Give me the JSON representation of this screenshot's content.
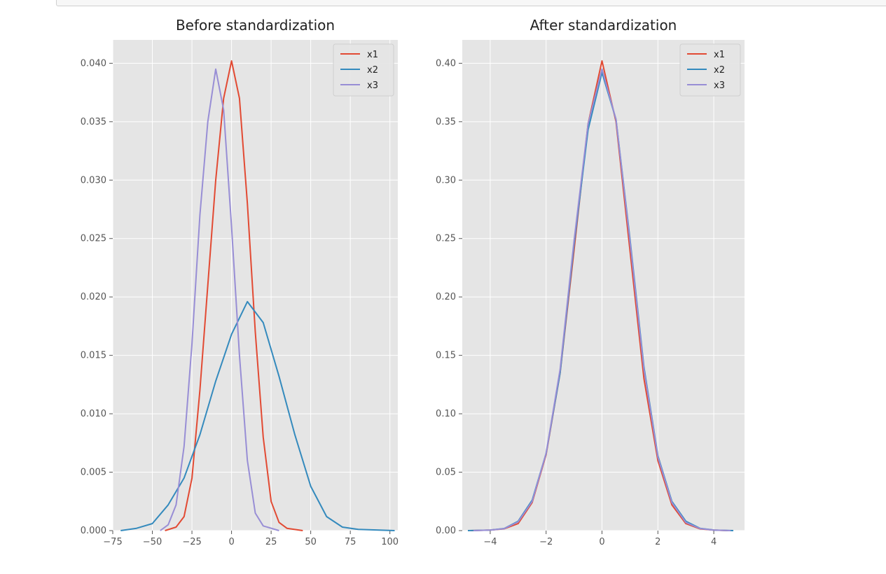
{
  "colors": {
    "x1": "#E24A33",
    "x2": "#348ABD",
    "x3": "#988ED5",
    "panel_bg": "#E5E5E5",
    "grid": "#FFFFFF"
  },
  "chart_data": [
    {
      "type": "line",
      "title": "Before standardization",
      "xlabel": "",
      "ylabel": "",
      "xlim": [
        -75,
        105
      ],
      "ylim": [
        0,
        0.042
      ],
      "grid": true,
      "legend_position": "top-right",
      "x_ticks": [
        -75,
        -50,
        -25,
        0,
        25,
        50,
        75,
        100
      ],
      "x_tick_labels": [
        "−75",
        "−50",
        "−25",
        "0",
        "25",
        "50",
        "75",
        "100"
      ],
      "y_ticks": [
        0,
        0.005,
        0.01,
        0.015,
        0.02,
        0.025,
        0.03,
        0.035,
        0.04
      ],
      "y_tick_labels": [
        "0.000",
        "0.005",
        "0.010",
        "0.015",
        "0.020",
        "0.025",
        "0.030",
        "0.035",
        "0.040"
      ],
      "series": [
        {
          "name": "x1",
          "color": "#E24A33",
          "points": [
            [
              -42,
              0
            ],
            [
              -35,
              0.0003
            ],
            [
              -30,
              0.0012
            ],
            [
              -25,
              0.0045
            ],
            [
              -20,
              0.012
            ],
            [
              -15,
              0.021
            ],
            [
              -10,
              0.03
            ],
            [
              -5,
              0.037
            ],
            [
              0,
              0.0402
            ],
            [
              5,
              0.037
            ],
            [
              10,
              0.028
            ],
            [
              15,
              0.017
            ],
            [
              20,
              0.008
            ],
            [
              25,
              0.0025
            ],
            [
              30,
              0.0007
            ],
            [
              35,
              0.0002
            ],
            [
              45,
              0
            ]
          ]
        },
        {
          "name": "x2",
          "color": "#348ABD",
          "points": [
            [
              -70,
              0
            ],
            [
              -60,
              0.0002
            ],
            [
              -50,
              0.0006
            ],
            [
              -40,
              0.0022
            ],
            [
              -30,
              0.0045
            ],
            [
              -20,
              0.0082
            ],
            [
              -10,
              0.0128
            ],
            [
              0,
              0.0168
            ],
            [
              10,
              0.0196
            ],
            [
              20,
              0.0178
            ],
            [
              30,
              0.0132
            ],
            [
              40,
              0.0082
            ],
            [
              50,
              0.0038
            ],
            [
              60,
              0.0012
            ],
            [
              70,
              0.0003
            ],
            [
              80,
              0.0001
            ],
            [
              103,
              0
            ]
          ]
        },
        {
          "name": "x3",
          "color": "#988ED5",
          "points": [
            [
              -45,
              0
            ],
            [
              -40,
              0.0005
            ],
            [
              -35,
              0.0022
            ],
            [
              -30,
              0.0072
            ],
            [
              -25,
              0.016
            ],
            [
              -20,
              0.027
            ],
            [
              -15,
              0.035
            ],
            [
              -10,
              0.0395
            ],
            [
              -5,
              0.036
            ],
            [
              0,
              0.026
            ],
            [
              5,
              0.015
            ],
            [
              10,
              0.006
            ],
            [
              15,
              0.0015
            ],
            [
              20,
              0.0004
            ],
            [
              30,
              0
            ]
          ]
        }
      ]
    },
    {
      "type": "line",
      "title": "After standardization",
      "xlabel": "",
      "ylabel": "",
      "xlim": [
        -5,
        5.1
      ],
      "ylim": [
        0,
        0.42
      ],
      "grid": true,
      "legend_position": "top-right",
      "x_ticks": [
        -4,
        -2,
        0,
        2,
        4
      ],
      "x_tick_labels": [
        "−4",
        "−2",
        "0",
        "2",
        "4"
      ],
      "y_ticks": [
        0,
        0.05,
        0.1,
        0.15,
        0.2,
        0.25,
        0.3,
        0.35,
        0.4
      ],
      "y_tick_labels": [
        "0.00",
        "0.05",
        "0.10",
        "0.15",
        "0.20",
        "0.25",
        "0.30",
        "0.35",
        "0.40"
      ],
      "series": [
        {
          "name": "x1",
          "color": "#E24A33",
          "points": [
            [
              -4.7,
              0
            ],
            [
              -4,
              0.0004
            ],
            [
              -3.5,
              0.0015
            ],
            [
              -3,
              0.006
            ],
            [
              -2.5,
              0.024
            ],
            [
              -2,
              0.065
            ],
            [
              -1.5,
              0.135
            ],
            [
              -1,
              0.24
            ],
            [
              -0.5,
              0.348
            ],
            [
              0,
              0.402
            ],
            [
              0.5,
              0.35
            ],
            [
              1,
              0.24
            ],
            [
              1.5,
              0.13
            ],
            [
              2,
              0.06
            ],
            [
              2.5,
              0.022
            ],
            [
              3,
              0.006
            ],
            [
              3.5,
              0.0015
            ],
            [
              4,
              0.0004
            ],
            [
              4.5,
              0
            ]
          ]
        },
        {
          "name": "x2",
          "color": "#348ABD",
          "points": [
            [
              -4.8,
              0
            ],
            [
              -4,
              0.0005
            ],
            [
              -3.5,
              0.0018
            ],
            [
              -3,
              0.008
            ],
            [
              -2.5,
              0.026
            ],
            [
              -2,
              0.066
            ],
            [
              -1.5,
              0.135
            ],
            [
              -1,
              0.245
            ],
            [
              -0.5,
              0.343
            ],
            [
              0,
              0.392
            ],
            [
              0.5,
              0.352
            ],
            [
              1,
              0.25
            ],
            [
              1.5,
              0.14
            ],
            [
              2,
              0.064
            ],
            [
              2.5,
              0.025
            ],
            [
              3,
              0.008
            ],
            [
              3.5,
              0.002
            ],
            [
              4,
              0.0005
            ],
            [
              4.7,
              0
            ]
          ]
        },
        {
          "name": "x3",
          "color": "#988ED5",
          "points": [
            [
              -4.6,
              0
            ],
            [
              -4,
              0.0004
            ],
            [
              -3.5,
              0.0017
            ],
            [
              -3,
              0.0075
            ],
            [
              -2.5,
              0.025
            ],
            [
              -2,
              0.066
            ],
            [
              -1.5,
              0.138
            ],
            [
              -1,
              0.248
            ],
            [
              -0.5,
              0.348
            ],
            [
              0,
              0.395
            ],
            [
              0.5,
              0.352
            ],
            [
              1,
              0.248
            ],
            [
              1.5,
              0.138
            ],
            [
              2,
              0.063
            ],
            [
              2.5,
              0.024
            ],
            [
              3,
              0.007
            ],
            [
              3.5,
              0.0018
            ],
            [
              4,
              0.0004
            ],
            [
              4.6,
              0
            ]
          ]
        }
      ]
    }
  ]
}
